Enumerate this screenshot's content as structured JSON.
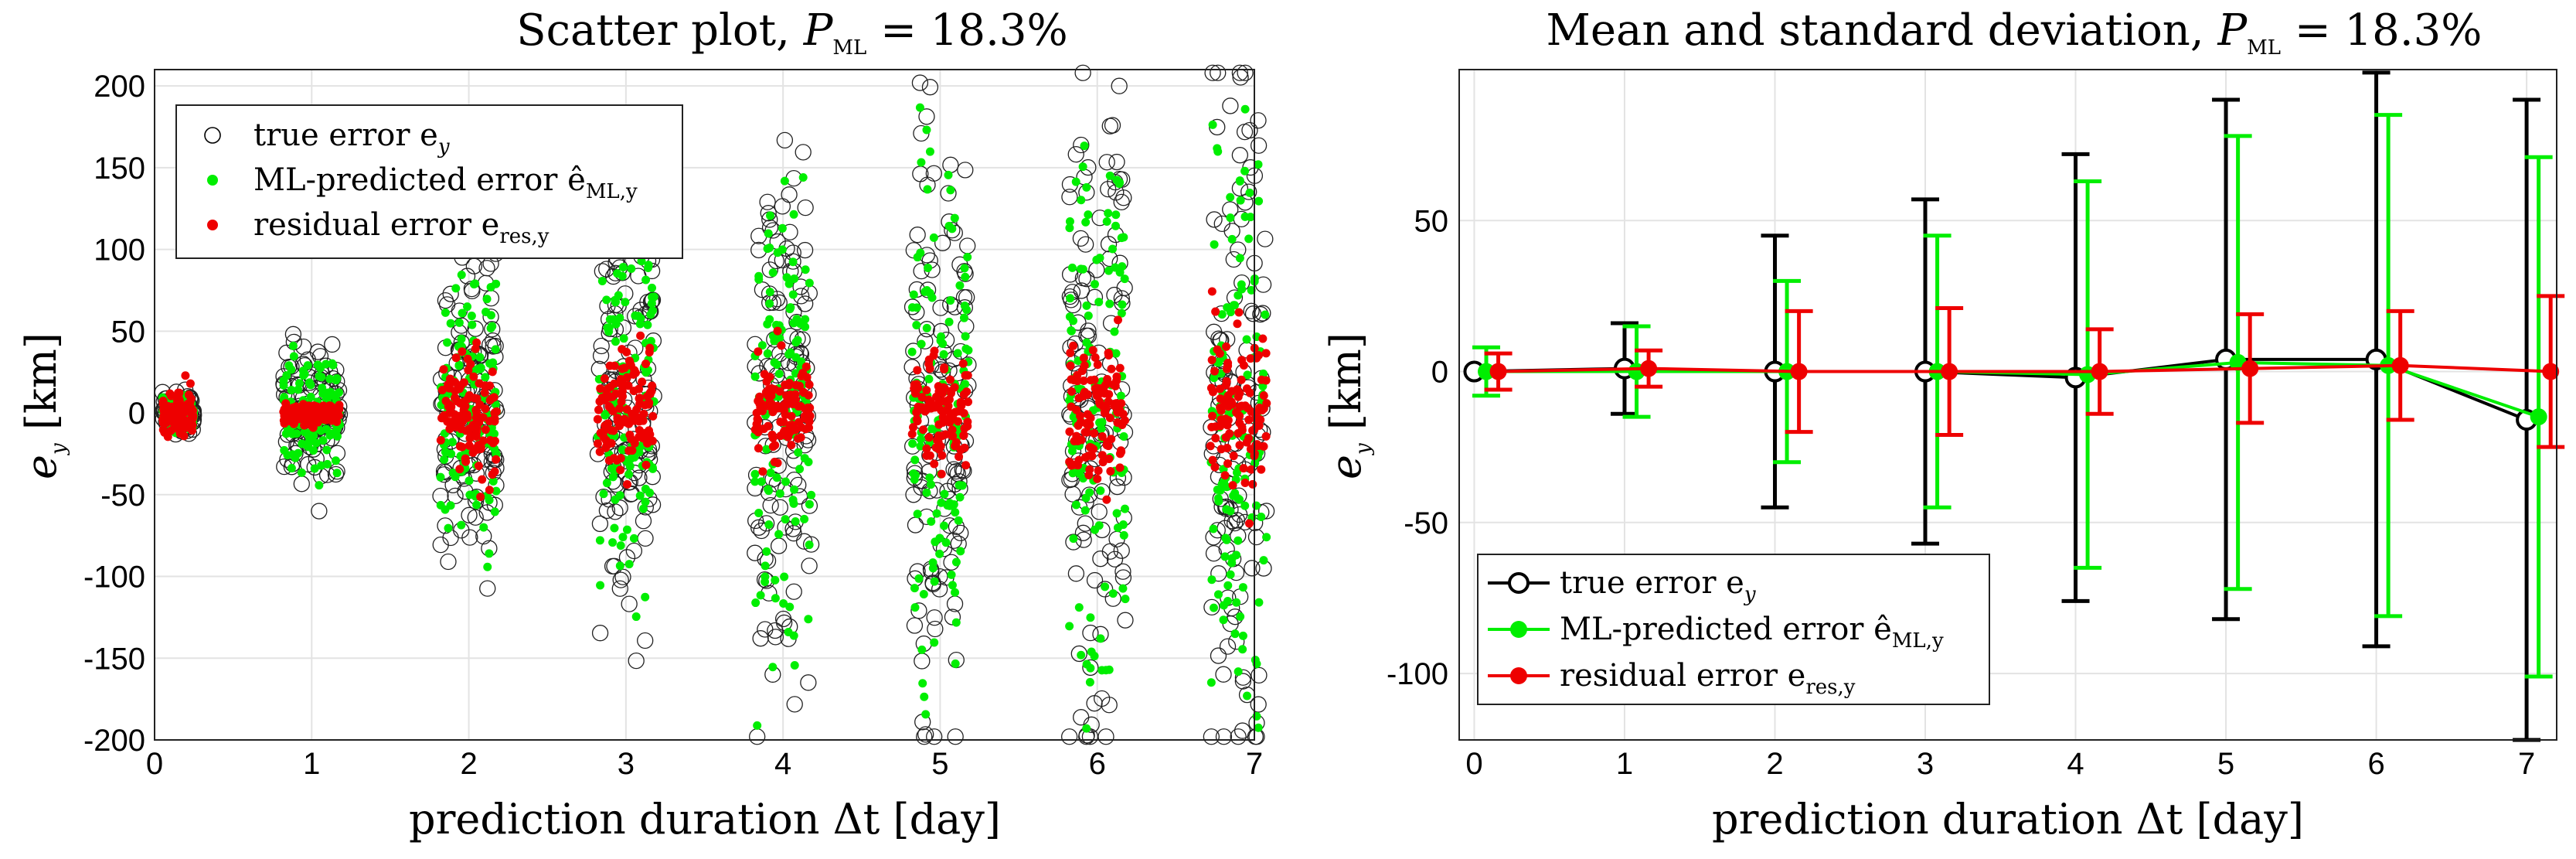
{
  "chart_data": [
    {
      "type": "scatter",
      "title": "Scatter plot, P_ML = 18.3%",
      "title_parts": {
        "lead": "Scatter plot, ",
        "var": "P",
        "sub": "ML",
        "tail": " = 18.3%"
      },
      "xlabel": "prediction duration Δt [day]",
      "ylabel_var": "e",
      "ylabel_sub": "y",
      "ylabel_unit": "[km]",
      "xlim": [
        0,
        7
      ],
      "ylim": [
        -200,
        210
      ],
      "xticks": [
        0,
        1,
        2,
        3,
        4,
        5,
        6,
        7
      ],
      "yticks": [
        -200,
        -150,
        -100,
        -50,
        0,
        50,
        100,
        150,
        200
      ],
      "grid": true,
      "legend_position": "top-left",
      "legend": [
        {
          "text": "true error e",
          "sub": "y",
          "marker": "open-circle",
          "color": "#000000"
        },
        {
          "text": "ML-predicted error ê",
          "sub": "ML,y",
          "marker": "dot",
          "color": "#00ee00"
        },
        {
          "text": "residual error e",
          "sub": "res,y",
          "marker": "dot",
          "color": "#ee0000"
        }
      ],
      "clusters": [
        {
          "center": 0.15,
          "true_sd": 6,
          "ml_sd": 7,
          "res_sd": 6
        },
        {
          "center": 1.0,
          "true_sd": 18,
          "ml_sd": 16,
          "res_sd": 3
        },
        {
          "center": 2.0,
          "true_sd": 48,
          "ml_sd": 34,
          "res_sd": 18
        },
        {
          "center": 3.0,
          "true_sd": 62,
          "ml_sd": 46,
          "res_sd": 18
        },
        {
          "center": 4.0,
          "true_sd": 80,
          "ml_sd": 66,
          "res_sd": 15
        },
        {
          "center": 5.0,
          "true_sd": 88,
          "ml_sd": 74,
          "res_sd": 18
        },
        {
          "center": 6.0,
          "true_sd": 95,
          "ml_sd": 80,
          "res_sd": 20
        },
        {
          "center": 6.9,
          "true_sd": 105,
          "ml_sd": 85,
          "res_sd": 25
        }
      ]
    },
    {
      "type": "errorbar",
      "title": "Mean and standard deviation, P_ML = 18.3%",
      "title_parts": {
        "lead": "Mean and standard deviation, ",
        "var": "P",
        "sub": "ML",
        "tail": " = 18.3%"
      },
      "xlabel": "prediction duration Δt [day]",
      "ylabel_var": "e",
      "ylabel_sub": "y",
      "ylabel_unit": "[km]",
      "xlim": [
        -0.1,
        7.2
      ],
      "ylim": [
        -122,
        100
      ],
      "xticks": [
        0,
        1,
        2,
        3,
        4,
        5,
        6,
        7
      ],
      "yticks": [
        -100,
        -50,
        0,
        50
      ],
      "grid": true,
      "legend_position": "bottom-left",
      "legend": [
        {
          "text": "true error e",
          "sub": "y",
          "color": "#000000",
          "marker": "open-circle"
        },
        {
          "text": "ML-predicted error ê",
          "sub": "ML,y",
          "color": "#00ee00",
          "marker": "dot"
        },
        {
          "text": "residual error e",
          "sub": "res,y",
          "color": "#ee0000",
          "marker": "dot"
        }
      ],
      "series": [
        {
          "name": "true error e_y",
          "color": "#000000",
          "x": [
            0,
            1,
            2,
            3,
            4,
            5,
            6,
            7
          ],
          "mean": [
            0,
            1,
            0,
            0,
            -2,
            4,
            4,
            -16
          ],
          "std": [
            0,
            15,
            45,
            57,
            74,
            86,
            95,
            106
          ]
        },
        {
          "name": "ML-predicted error ê_ML,y",
          "color": "#00ee00",
          "x": [
            0.08,
            1.08,
            2.08,
            3.08,
            4.08,
            5.08,
            6.08,
            7.08
          ],
          "mean": [
            0,
            0,
            0,
            0,
            -1,
            3,
            2,
            -15
          ],
          "std": [
            8,
            15,
            30,
            45,
            64,
            75,
            83,
            86
          ]
        },
        {
          "name": "residual error e_res,y",
          "color": "#ee0000",
          "x": [
            0.16,
            1.16,
            2.16,
            3.16,
            4.16,
            5.16,
            6.16,
            7.16
          ],
          "mean": [
            0,
            1,
            0,
            0,
            0,
            1,
            2,
            0
          ],
          "std": [
            6,
            6,
            20,
            21,
            14,
            18,
            18,
            25
          ]
        }
      ]
    }
  ]
}
